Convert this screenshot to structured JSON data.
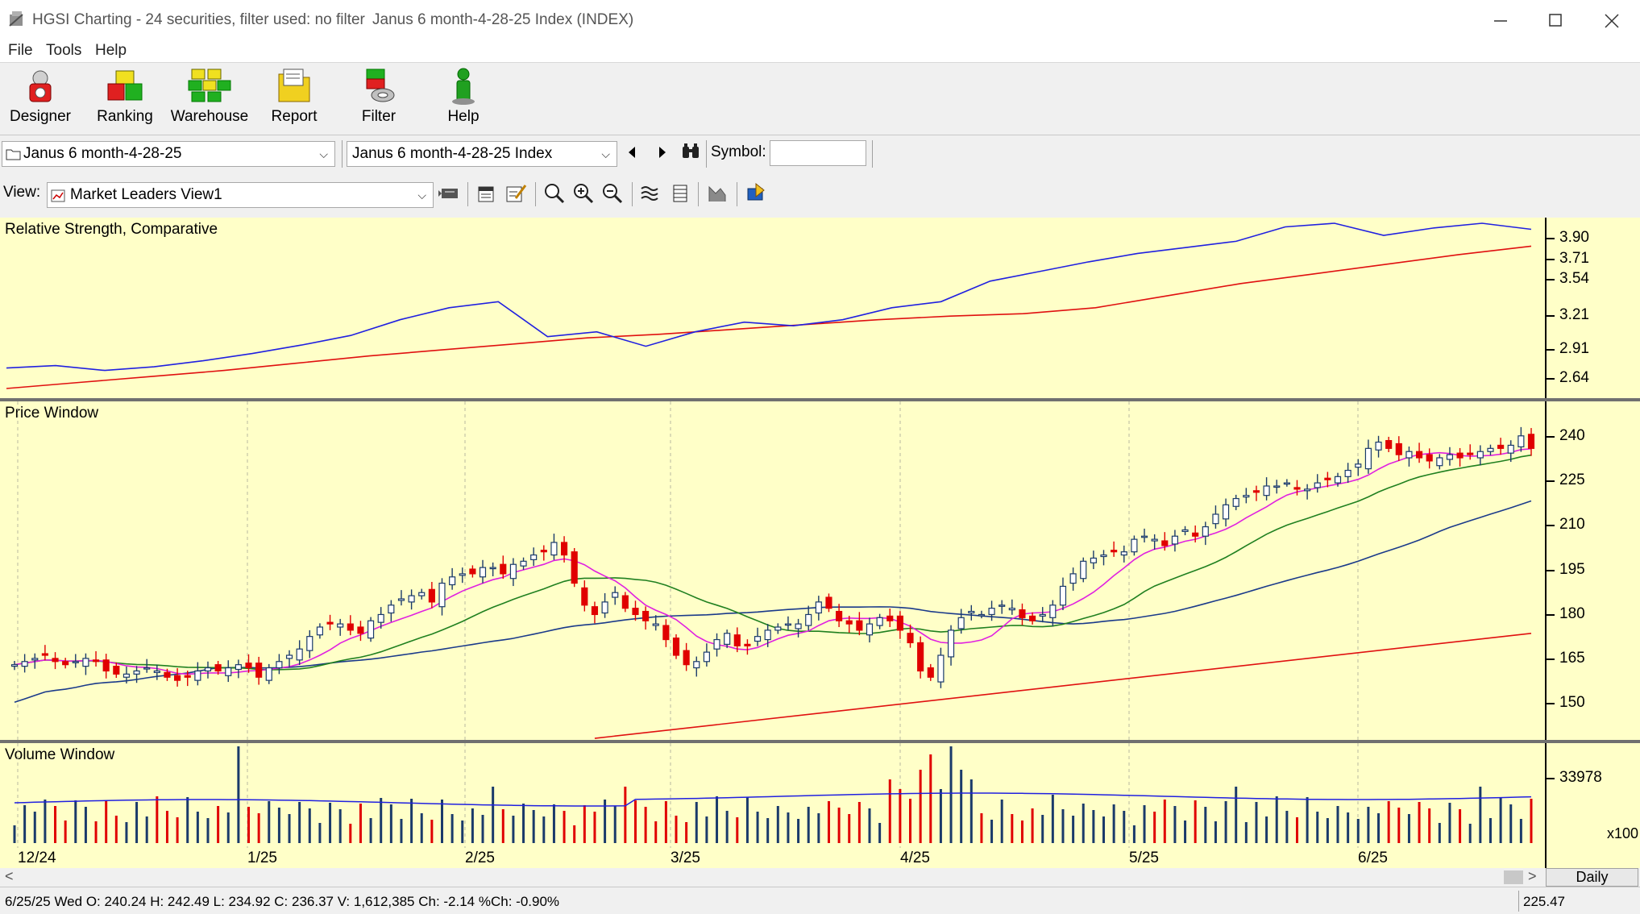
{
  "window": {
    "title": "HGSI Charting - 24 securities, filter used: no filter",
    "subtitle": "Janus 6 month-4-28-25 Index (INDEX)",
    "controls": [
      "minimize",
      "maximize",
      "close"
    ]
  },
  "menu": [
    "File",
    "Tools",
    "Help"
  ],
  "toolbar": {
    "buttons": [
      {
        "label": "Designer",
        "icon": "designer-icon"
      },
      {
        "label": "Ranking",
        "icon": "ranking-icon"
      },
      {
        "label": "Warehouse",
        "icon": "warehouse-icon"
      },
      {
        "label": "Report",
        "icon": "report-icon"
      },
      {
        "label": "Filter",
        "icon": "filter-icon"
      },
      {
        "label": "Help",
        "icon": "help-icon"
      }
    ]
  },
  "selectors": {
    "list_combo": "Janus 6 month-4-28-25",
    "security_combo": "Janus 6 month-4-28-25 Index",
    "symbol_label": "Symbol:",
    "symbol_value": "",
    "view_label": "View:",
    "view_combo": "Market Leaders View1"
  },
  "chart_data": [
    {
      "type": "line",
      "title": "Relative Strength, Comparative",
      "ytick_labels": [
        "3.90",
        "3.71",
        "3.54",
        "3.21",
        "2.91",
        "2.64"
      ],
      "series": [],
      "colors": {
        "rs": "#2020e0",
        "rs_ma": "#e01010"
      },
      "approximate_values": {
        "rs": [
          2.8,
          2.82,
          2.78,
          2.81,
          2.86,
          2.92,
          2.99,
          3.07,
          3.2,
          3.3,
          3.35,
          3.06,
          3.1,
          2.98,
          3.1,
          3.18,
          3.15,
          3.2,
          3.3,
          3.35,
          3.52,
          3.6,
          3.68,
          3.75,
          3.8,
          3.85,
          3.97,
          4.0,
          3.9,
          3.96,
          4.0,
          3.95
        ],
        "rs_ma": [
          2.63,
          2.68,
          2.73,
          2.78,
          2.84,
          2.9,
          2.95,
          3.0,
          3.05,
          3.08,
          3.12,
          3.16,
          3.2,
          3.23,
          3.25,
          3.3,
          3.4,
          3.5,
          3.58,
          3.66,
          3.74,
          3.81
        ]
      }
    },
    {
      "type": "candlestick",
      "title": "Price Window",
      "ytick_labels": [
        "240",
        "225",
        "210",
        "195",
        "180",
        "165",
        "150"
      ],
      "ylim": [
        143,
        251
      ],
      "xtick_labels": [
        "12/24",
        "1/25",
        "2/25",
        "3/25",
        "4/25",
        "5/25",
        "6/25"
      ],
      "colors": {
        "up": "#1a3a6a",
        "down": "#e00000",
        "ma_short": "#e020e0",
        "ma_mid": "#208020",
        "ma_long": "#1a3a8a",
        "ma_200": "#e01010"
      },
      "closes": [
        167,
        168,
        169,
        170,
        168,
        167,
        168,
        169,
        168,
        165,
        164,
        164,
        165,
        166,
        165,
        163,
        162,
        163,
        165,
        166,
        165,
        166,
        167,
        166,
        163,
        166,
        168,
        170,
        172,
        176,
        179,
        180,
        180,
        178,
        177,
        181,
        183,
        186,
        188,
        189,
        190,
        187,
        193,
        195,
        196,
        196,
        198,
        198,
        196,
        199,
        200,
        202,
        203,
        206,
        202,
        193,
        186,
        183,
        187,
        190,
        185,
        183,
        181,
        180,
        175,
        170,
        167,
        168,
        171,
        175,
        177,
        173,
        173,
        176,
        178,
        179,
        180,
        180,
        183,
        187,
        185,
        181,
        180,
        178,
        180,
        182,
        181,
        178,
        174,
        165,
        163,
        170,
        178,
        182,
        184,
        183,
        185,
        186,
        185,
        182,
        181,
        183,
        186,
        192,
        196,
        200,
        201,
        202,
        203,
        203,
        207,
        208,
        207,
        205,
        208,
        210,
        208,
        211,
        215,
        218,
        220,
        221,
        222,
        224,
        224,
        225,
        223,
        223,
        225,
        226,
        227,
        229,
        231,
        236,
        238,
        236,
        234,
        235,
        233,
        232,
        233,
        234,
        233,
        234,
        235,
        236,
        236,
        237,
        240,
        236
      ]
    },
    {
      "type": "bar",
      "title": "Volume Window",
      "ytick_labels": [
        "33978"
      ],
      "unit_label": "x100",
      "colors": {
        "up": "#1a3a6a",
        "down": "#e00000",
        "avg": "#2020e0"
      }
    }
  ],
  "footer": {
    "scroll_left": "<",
    "scroll_right": ">",
    "period": "Daily",
    "status": "6/25/25 Wed O: 240.24 H: 242.49 L: 234.92 C: 236.37 V: 1,612,385 Ch: -2.14 %Ch: -0.90%",
    "cursor_value": "225.47"
  }
}
